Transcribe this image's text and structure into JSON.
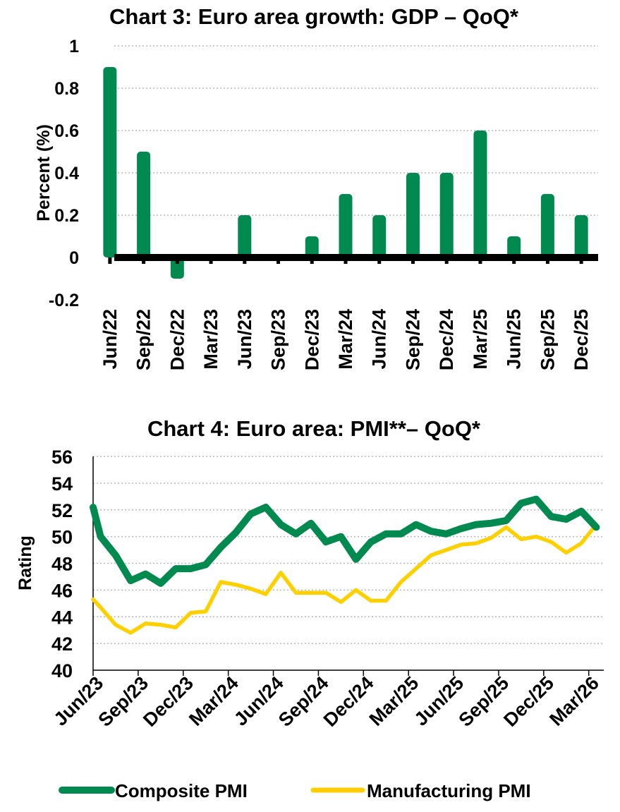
{
  "chart_data": [
    {
      "type": "bar",
      "title": "Chart 3: Euro area growth: GDP – QoQ*",
      "ylabel": "Percent (%)",
      "xlabel": "",
      "categories": [
        "Jun/22",
        "Sep/22",
        "Dec/22",
        "Mar/23",
        "Jun/23",
        "Sep/23",
        "Dec/23",
        "Mar/24",
        "Jun/24",
        "Sep/24",
        "Dec/24",
        "Mar/25",
        "Jun/25",
        "Sep/25",
        "Dec/25"
      ],
      "values": [
        0.9,
        0.5,
        -0.1,
        0.0,
        0.2,
        0.0,
        0.1,
        0.3,
        0.2,
        0.4,
        0.4,
        0.6,
        0.1,
        0.3,
        0.2
      ],
      "ylim": [
        -0.2,
        1
      ],
      "yticks": [
        "1",
        "0.8",
        "0.6",
        "0.4",
        "0.2",
        "0",
        "-0.2"
      ],
      "ytick_values": [
        1,
        0.8,
        0.6,
        0.4,
        0.2,
        0,
        -0.2
      ],
      "grid": true,
      "color": "#008a4f",
      "zero_line_color": "#000000"
    },
    {
      "type": "line",
      "title": "Chart 4: Euro area: PMI**– QoQ*",
      "ylabel": "Rating",
      "xlabel": "",
      "x_tick_labels": [
        "Jun/23",
        "Sep/23",
        "Dec/23",
        "Mar/24",
        "Jun/24",
        "Sep/24",
        "Dec/24",
        "Mar/25",
        "Jun/25",
        "Sep/25",
        "Dec/25",
        "Mar/26"
      ],
      "x_tick_months": [
        0,
        3,
        6,
        9,
        12,
        15,
        18,
        21,
        24,
        27,
        30,
        33
      ],
      "ylim": [
        40,
        56
      ],
      "yticks": [
        "56",
        "54",
        "52",
        "50",
        "48",
        "46",
        "44",
        "42",
        "40"
      ],
      "ytick_values": [
        56,
        54,
        52,
        50,
        48,
        46,
        44,
        42,
        40
      ],
      "grid": true,
      "legend_position": "bottom",
      "series": [
        {
          "name": "Composite PMI",
          "color": "#008a4f",
          "months": [
            0,
            0.5,
            1.5,
            2.5,
            3.5,
            4.5,
            5.5,
            6.5,
            7.5,
            8.5,
            9.5,
            10.5,
            11.5,
            12.5,
            13.5,
            14.5,
            15.5,
            16.5,
            17.5,
            18.5,
            19.5,
            20.5,
            21.5,
            22.5,
            23.5,
            24.5,
            25.5,
            26.5,
            27.5,
            28.5,
            29.5,
            30.5,
            31.5,
            32.5,
            33.5
          ],
          "values": [
            52.2,
            50.0,
            48.6,
            46.7,
            47.2,
            46.5,
            47.6,
            47.6,
            47.9,
            49.2,
            50.3,
            51.7,
            52.2,
            50.9,
            50.2,
            51.0,
            49.6,
            50.0,
            48.3,
            49.6,
            50.2,
            50.2,
            50.9,
            50.4,
            50.2,
            50.6,
            50.9,
            51.0,
            51.2,
            52.5,
            52.8,
            51.5,
            51.3,
            51.9,
            50.7
          ]
        },
        {
          "name": "Manufacturing PMI",
          "color": "#ffd000",
          "months": [
            0,
            0.5,
            1.5,
            2.5,
            3.5,
            4.5,
            5.5,
            6.5,
            7.5,
            8.5,
            9.5,
            10.5,
            11.5,
            12.5,
            13.5,
            14.5,
            15.5,
            16.5,
            17.5,
            18.5,
            19.5,
            20.5,
            21.5,
            22.5,
            23.5,
            24.5,
            25.5,
            26.5,
            27.5,
            28.5,
            29.5,
            30.5,
            31.5,
            32.5,
            33.5
          ],
          "values": [
            45.3,
            44.7,
            43.4,
            42.8,
            43.5,
            43.4,
            43.2,
            44.3,
            44.4,
            46.6,
            46.4,
            46.1,
            45.7,
            47.3,
            45.8,
            45.8,
            45.8,
            45.1,
            46.0,
            45.2,
            45.2,
            46.6,
            47.6,
            48.6,
            49.0,
            49.4,
            49.5,
            49.9,
            50.7,
            49.8,
            50.0,
            49.6,
            48.8,
            49.5,
            50.9
          ]
        }
      ]
    }
  ]
}
